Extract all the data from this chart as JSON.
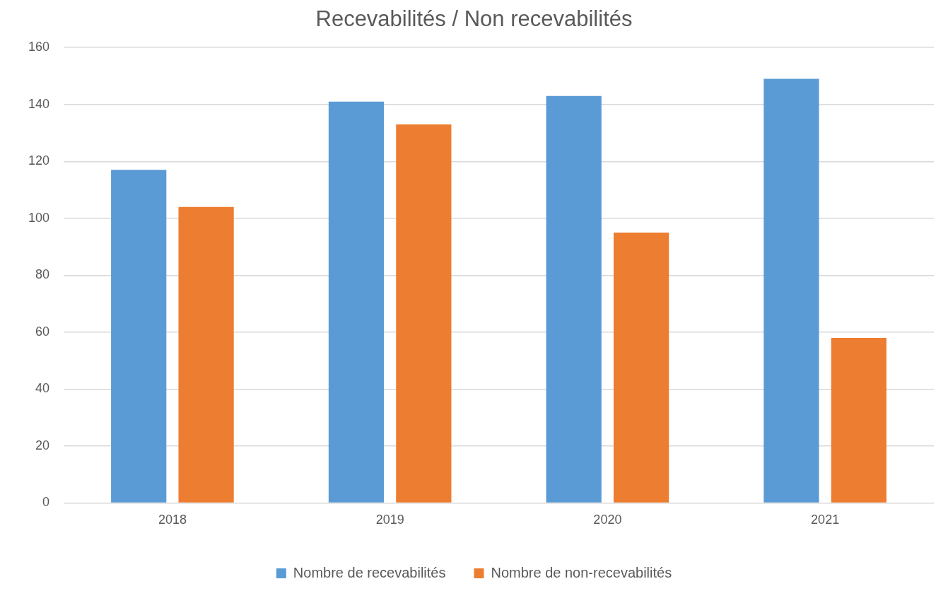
{
  "chart_data": {
    "type": "bar",
    "title": "Recevabilités / Non recevabilités",
    "categories": [
      "2018",
      "2019",
      "2020",
      "2021"
    ],
    "series": [
      {
        "name": "Nombre de recevabilités",
        "color": "#5b9bd5",
        "values": [
          117,
          141,
          143,
          149
        ]
      },
      {
        "name": "Nombre de non-recevabilités",
        "color": "#ed7d31",
        "values": [
          104,
          133,
          95,
          58
        ]
      }
    ],
    "ylim": [
      0,
      160
    ],
    "yticks": [
      0,
      20,
      40,
      60,
      80,
      100,
      120,
      140,
      160
    ],
    "grid": "y",
    "legend": "bottom"
  }
}
